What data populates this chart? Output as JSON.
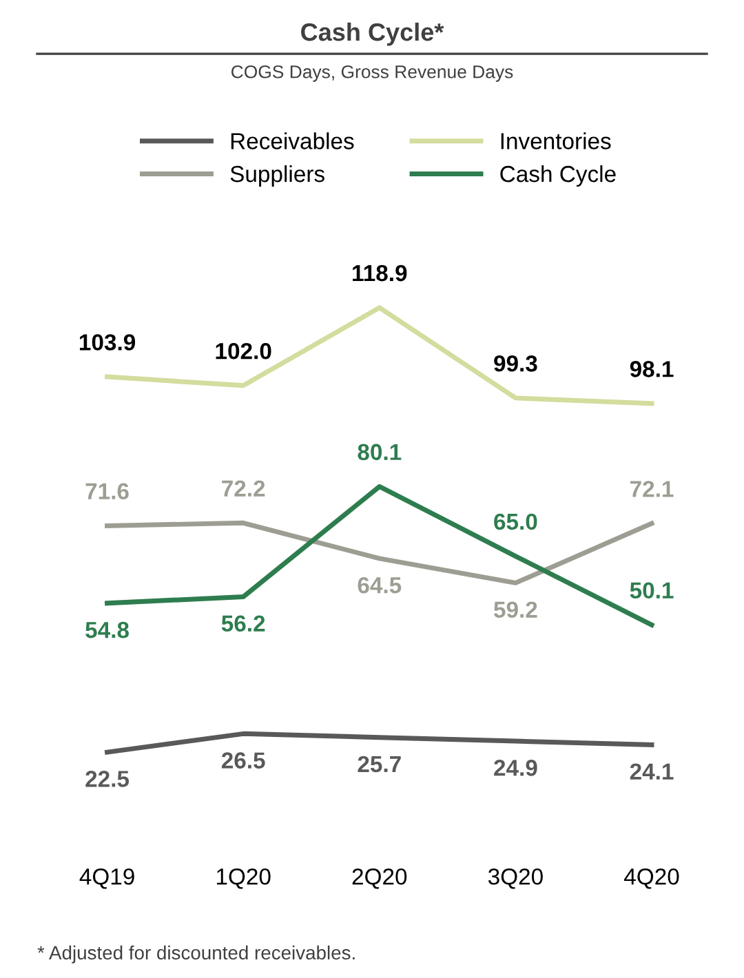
{
  "chart_data": {
    "type": "line",
    "title": "Cash Cycle*",
    "subtitle": "COGS Days, Gross Revenue Days",
    "categories": [
      "4Q19",
      "1Q20",
      "2Q20",
      "3Q20",
      "4Q20"
    ],
    "series": [
      {
        "name": "Receivables",
        "color": "#595959",
        "values": [
          22.5,
          26.5,
          25.7,
          24.9,
          24.1
        ],
        "value_labels": [
          "22.5",
          "26.5",
          "25.7",
          "24.9",
          "24.1"
        ]
      },
      {
        "name": "Inventories",
        "color": "#d4dc9e",
        "values": [
          103.9,
          102.0,
          118.9,
          99.3,
          98.1
        ],
        "value_labels": [
          "103.9",
          "102.0",
          "118.9",
          "99.3",
          "98.1"
        ]
      },
      {
        "name": "Suppliers",
        "color": "#9d9d93",
        "values": [
          71.6,
          72.2,
          64.5,
          59.2,
          72.1
        ],
        "value_labels": [
          "71.6",
          "72.2",
          "64.5",
          "59.2",
          "72.1"
        ]
      },
      {
        "name": "Cash Cycle",
        "color": "#2e7d4f",
        "values": [
          54.8,
          56.2,
          80.1,
          65.0,
          50.1
        ],
        "value_labels": [
          "54.8",
          "56.2",
          "80.1",
          "65.0",
          "50.1"
        ]
      }
    ],
    "legend": "top",
    "grid": false,
    "marker": "none",
    "line_style": "solid",
    "tick_labels": "x",
    "annotations": [
      "* Adjusted for discounted receivables."
    ]
  }
}
